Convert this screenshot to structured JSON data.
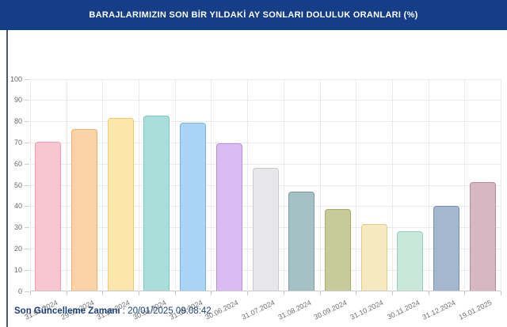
{
  "header": {
    "title": "BARAJLARIMIZIN SON BİR YILDAKİ AY SONLARI DOLULUK ORANLARI (%)",
    "bg_color": "#163d87",
    "text_color": "#ffffff"
  },
  "footer": {
    "label": "Son Güncelleme Zamanı",
    "separator": " : ",
    "value": "20/01/2025 09:08:42",
    "text_color": "#1c3f7e"
  },
  "chart_data": {
    "type": "bar",
    "title": "BARAJLARIMIZIN SON BİR YILDAKİ AY SONLARI DOLULUK ORANLARI (%)",
    "xlabel": "",
    "ylabel": "",
    "ylim": [
      0,
      100
    ],
    "ytick_step": 10,
    "grid": true,
    "legend": "none",
    "categories": [
      "31.01.2024",
      "29.02.2024",
      "31.03.2024",
      "30.04.2024",
      "31.05.2024",
      "30.06.2024",
      "31.07.2024",
      "31.08.2024",
      "30.09.2024",
      "31.10.2024",
      "30.11.2024",
      "31.12.2024",
      "19.01.2025"
    ],
    "values": [
      70,
      76,
      81.5,
      82.5,
      79,
      69.5,
      58,
      46.5,
      38.5,
      31.5,
      28,
      40,
      51
    ],
    "bar_fill_colors": [
      "#f9c5d0",
      "#fbd3a7",
      "#fde6aa",
      "#aadedb",
      "#aad4f5",
      "#dabcf2",
      "#e7e7e9",
      "#a6c1c5",
      "#c7ca99",
      "#f6e9bf",
      "#c9e7da",
      "#a5b7cf",
      "#d6b8c3"
    ],
    "bar_border_colors": [
      "#f09db2",
      "#f3ac6f",
      "#eccb72",
      "#79c6c5",
      "#77b5e5",
      "#bd8ee4",
      "#c9c9ce",
      "#7b9da2",
      "#a6ac68",
      "#dfcc88",
      "#99cfba",
      "#7690b0",
      "#b48a9b"
    ],
    "axis_text_color": "#6e6e6e",
    "grid_color": "#ebebeb"
  }
}
